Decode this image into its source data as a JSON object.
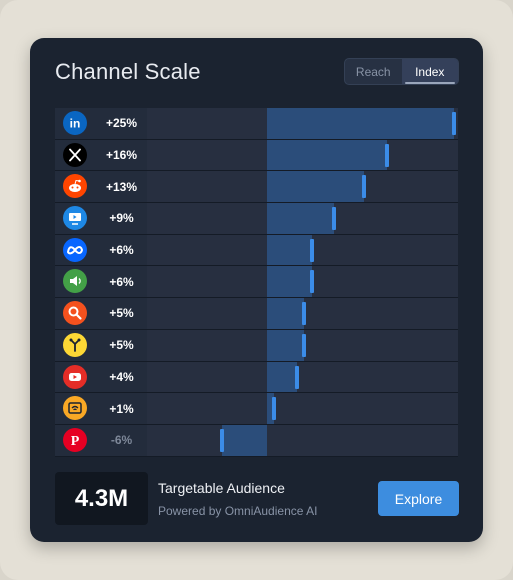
{
  "header": {
    "title": "Channel Scale"
  },
  "toggle": {
    "options": [
      "Reach",
      "Index"
    ],
    "active": "Index"
  },
  "chart_data": {
    "type": "bar",
    "orientation": "horizontal",
    "baseline": 0,
    "xlim": [
      -13,
      25
    ],
    "categories": [
      "LinkedIn",
      "X",
      "Reddit",
      "Connected TV",
      "Meta",
      "Audio",
      "Search",
      "Programmatic",
      "YouTube",
      "Wi-Fi",
      "Pinterest"
    ],
    "values": [
      25,
      16,
      13,
      9,
      6,
      6,
      5,
      5,
      4,
      1,
      -6
    ],
    "labels": [
      "+25%",
      "+16%",
      "+13%",
      "+9%",
      "+6%",
      "+6%",
      "+5%",
      "+5%",
      "+4%",
      "+1%",
      "-6%"
    ],
    "icons": [
      "linkedin-icon",
      "x-icon",
      "reddit-icon",
      "ctv-icon",
      "meta-icon",
      "audio-icon",
      "search-icon",
      "programmatic-icon",
      "youtube-icon",
      "wifi-icon",
      "pinterest-icon"
    ],
    "icon_colors": [
      "#0a66c2",
      "#000000",
      "#ff4500",
      "#1e88e5",
      "#0866ff",
      "#43a047",
      "#f4511e",
      "#fdd835",
      "#e52d27",
      "#f9a825",
      "#e60023"
    ],
    "bar_color": "#2b4d7a",
    "cap_color": "#3b8ce8"
  },
  "footer": {
    "audience_value": "4.3M",
    "audience_title": "Targetable Audience",
    "powered_by": "Powered by OmniAudience AI",
    "explore_label": "Explore"
  }
}
